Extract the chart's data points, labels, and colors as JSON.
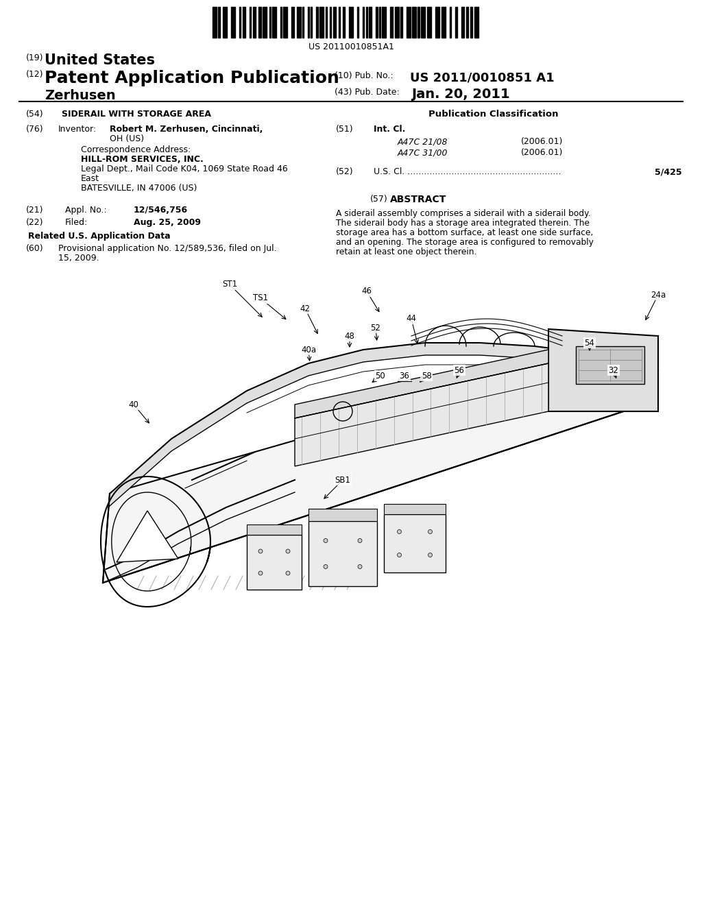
{
  "bg_color": "#ffffff",
  "barcode_text": "US 20110010851A1",
  "title_19": "(19)",
  "title_19b": "United States",
  "title_12": "(12)",
  "title_12b": "Patent Application Publication",
  "pub_no_label": "(10) Pub. No.:",
  "pub_no_value": "US 2011/0010851 A1",
  "inventor_name": "Zerhusen",
  "pub_date_label": "(43) Pub. Date:",
  "pub_date_value": "Jan. 20, 2011",
  "field54_label": "(54)",
  "field54_value": "SIDERAIL WITH STORAGE AREA",
  "pub_class_label": "Publication Classification",
  "field76_label": "(76)",
  "field76_title": "Inventor:",
  "field76_name": "Robert M. Zerhusen, Cincinnati,",
  "field76_addr": "OH (US)",
  "corr_label": "Correspondence Address:",
  "corr_line1": "HILL-ROM SERVICES, INC.",
  "corr_line2": "Legal Dept., Mail Code K04, 1069 State Road 46",
  "corr_line3": "East",
  "corr_line4": "BATESVILLE, IN 47006 (US)",
  "field51_label": "(51)",
  "field51_title": "Int. Cl.",
  "field51_class1": "A47C 21/08",
  "field51_year1": "(2006.01)",
  "field51_class2": "A47C 31/00",
  "field51_year2": "(2006.01)",
  "field52_label": "(52)",
  "field52_dots": "U.S. Cl. ........................................................",
  "field52_value": "5/425",
  "field21_label": "(21)",
  "field21_title": "Appl. No.:",
  "field21_value": "12/546,756",
  "field22_label": "(22)",
  "field22_title": "Filed:",
  "field22_value": "Aug. 25, 2009",
  "related_title": "Related U.S. Application Data",
  "field60_label": "(60)",
  "field60_line1": "Provisional application No. 12/589,536, filed on Jul.",
  "field60_line2": "15, 2009.",
  "field57_label": "(57)",
  "field57_title": "ABSTRACT",
  "abstract_lines": [
    "A siderail assembly comprises a siderail with a siderail body.",
    "The siderail body has a storage area integrated therein. The",
    "storage area has a bottom surface, at least one side surface,",
    "and an opening. The storage area is configured to removably",
    "retain at least one object therein."
  ]
}
